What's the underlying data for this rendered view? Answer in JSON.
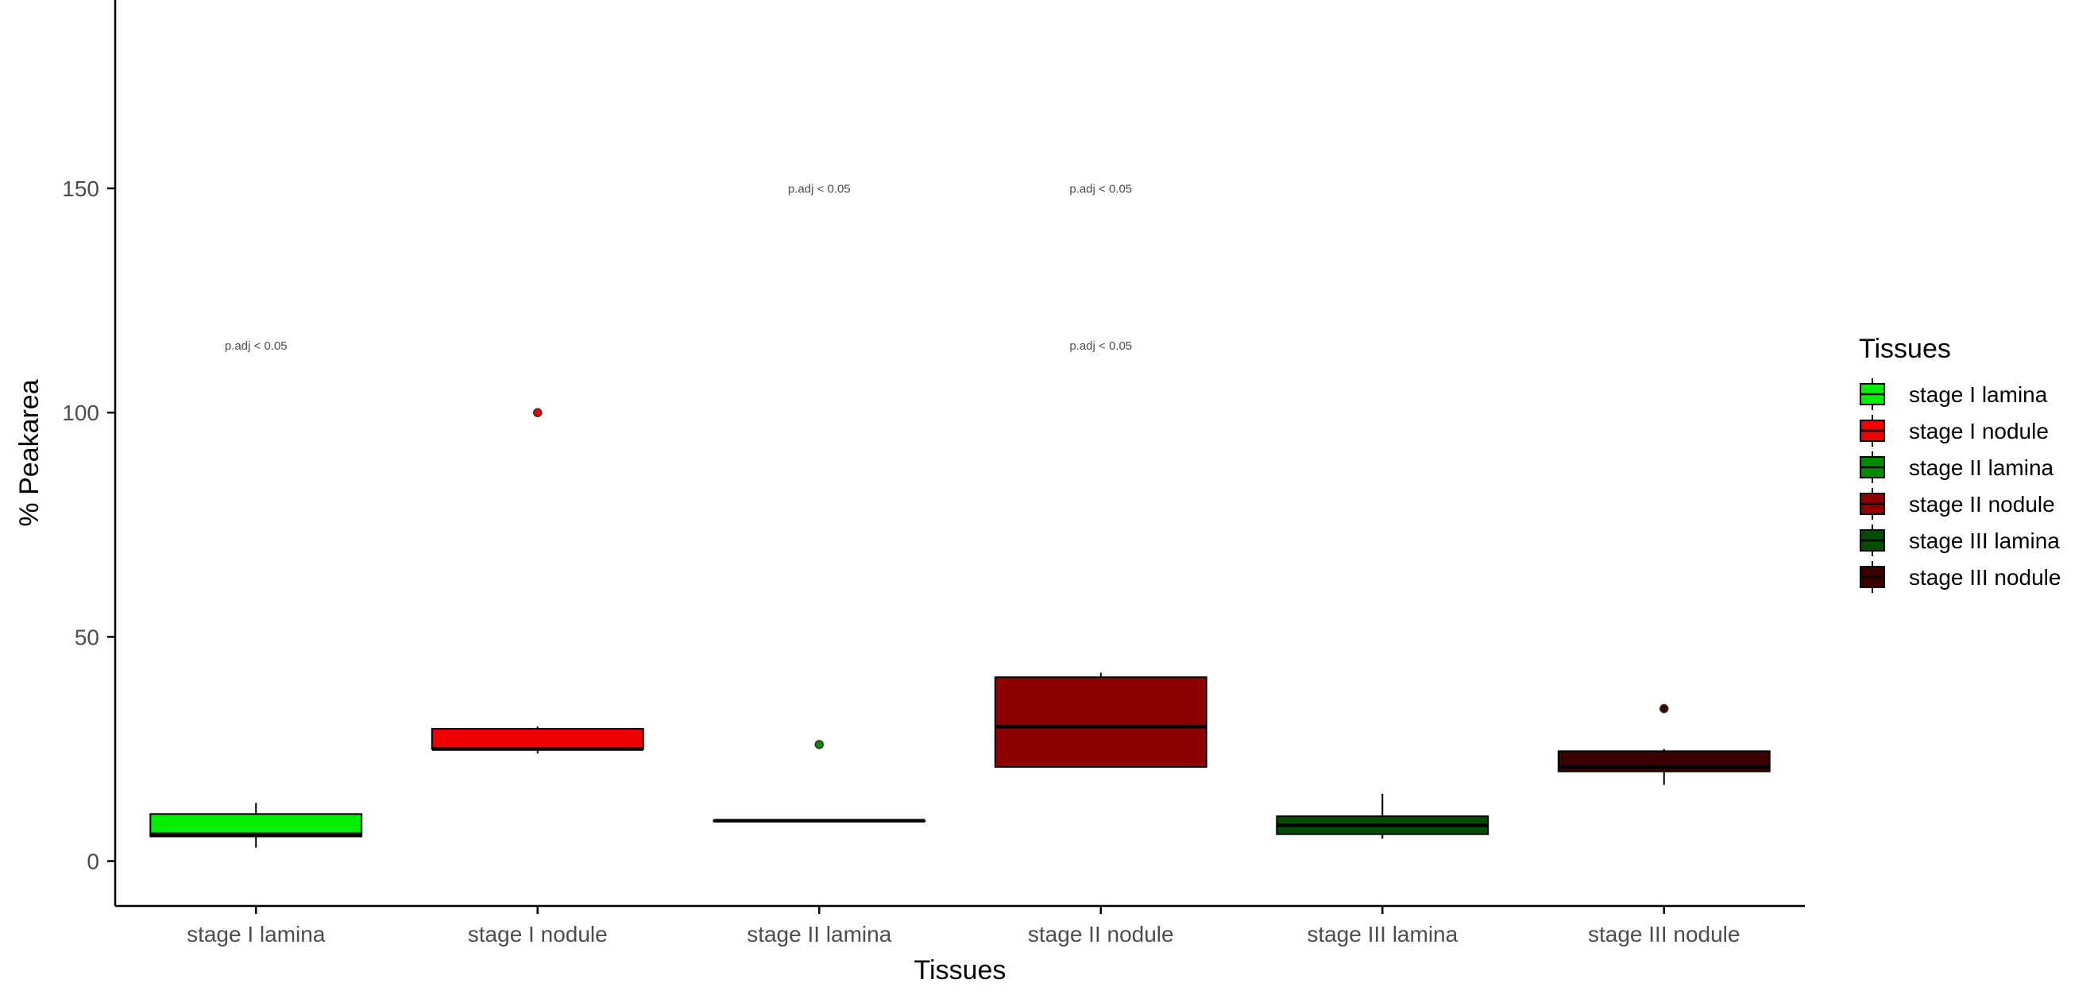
{
  "chart_data": {
    "type": "box",
    "title": "",
    "xlabel": "Tissues",
    "ylabel": "% Peakarea",
    "ylim": [
      -10,
      192
    ],
    "yticks": [
      0,
      50,
      100,
      150
    ],
    "grid": false,
    "legend": {
      "title": "Tissues",
      "placement": "right"
    },
    "categories": [
      "stage I lamina",
      "stage I nodule",
      "stage II lamina",
      "stage II nodule",
      "stage III lamina",
      "stage III nodule"
    ],
    "series": [
      {
        "name": "stage I lamina",
        "color": "#00ee00",
        "whisker_low": 3,
        "q1": 5.5,
        "median": 6,
        "q3": 10.5,
        "whisker_high": 13,
        "outliers": []
      },
      {
        "name": "stage I nodule",
        "color": "#ee0000",
        "whisker_low": 24,
        "q1": 25,
        "median": 25,
        "q3": 29.5,
        "whisker_high": 30,
        "outliers": [
          100
        ]
      },
      {
        "name": "stage II lamina",
        "color": "#008b00",
        "whisker_low": 9,
        "q1": 9,
        "median": 9,
        "q3": 9,
        "whisker_high": 9,
        "outliers": [
          26
        ]
      },
      {
        "name": "stage II nodule",
        "color": "#8b0000",
        "whisker_low": 21,
        "q1": 21,
        "median": 30,
        "q3": 41,
        "whisker_high": 42,
        "outliers": []
      },
      {
        "name": "stage III lamina",
        "color": "#004d00",
        "whisker_low": 5,
        "q1": 6,
        "median": 8,
        "q3": 10,
        "whisker_high": 15,
        "outliers": []
      },
      {
        "name": "stage III nodule",
        "color": "#3b0000",
        "whisker_low": 17,
        "q1": 20,
        "median": 21,
        "q3": 24.5,
        "whisker_high": 25,
        "outliers": [
          34
        ]
      }
    ],
    "annotations": [
      {
        "category": "stage I lamina",
        "y": 114,
        "text": "p.adj < 0.05"
      },
      {
        "category": "stage II lamina",
        "y": 149,
        "text": "p.adj < 0.05"
      },
      {
        "category": "stage II nodule",
        "y": 149,
        "text": "p.adj < 0.05"
      },
      {
        "category": "stage II nodule",
        "y": 114,
        "text": "p.adj < 0.05"
      }
    ]
  }
}
